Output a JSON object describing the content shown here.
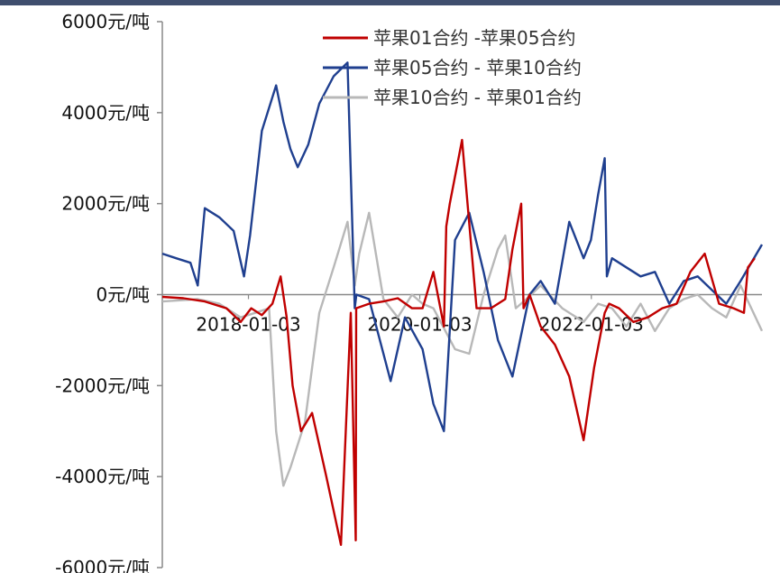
{
  "chart_data": {
    "type": "line",
    "y_unit": "元/吨",
    "ylim": [
      -6000,
      6000
    ],
    "y_ticks": [
      {
        "value": 6000,
        "label": "6000元/吨"
      },
      {
        "value": 4000,
        "label": "4000元/吨"
      },
      {
        "value": 2000,
        "label": "2000元/吨"
      },
      {
        "value": 0,
        "label": "0元/吨"
      },
      {
        "value": -2000,
        "label": "-2000元/吨"
      },
      {
        "value": -4000,
        "label": "-4000元/吨"
      },
      {
        "value": -6000,
        "label": "-6000元/吨"
      }
    ],
    "xlim": [
      "2017-01-01",
      "2023-12-31"
    ],
    "x_ticks": [
      "2018-01-03",
      "2020-01-03",
      "2022-01-03"
    ],
    "legend_position": "top-right",
    "grid": false,
    "series": [
      {
        "name": "苹果01合约 -苹果05合约",
        "color": "#c00000",
        "x": [
          "2017-01-01",
          "2017-04-01",
          "2017-07-01",
          "2017-10-01",
          "2017-12-01",
          "2018-01-15",
          "2018-03-01",
          "2018-04-15",
          "2018-05-20",
          "2018-06-15",
          "2018-07-10",
          "2018-08-15",
          "2018-10-01",
          "2018-12-01",
          "2019-02-01",
          "2019-03-15",
          "2019-04-05",
          "2019-04-07",
          "2019-06-01",
          "2019-08-01",
          "2019-10-01",
          "2019-12-01",
          "2020-01-15",
          "2020-03-01",
          "2020-04-15",
          "2020-04-25",
          "2020-05-10",
          "2020-07-01",
          "2020-09-01",
          "2020-11-01",
          "2021-01-01",
          "2021-02-01",
          "2021-03-10",
          "2021-03-20",
          "2021-04-15",
          "2021-06-01",
          "2021-08-01",
          "2021-10-01",
          "2021-12-01",
          "2022-01-15",
          "2022-03-01",
          "2022-03-10",
          "2022-03-20",
          "2022-05-01",
          "2022-07-01",
          "2022-09-01",
          "2022-11-01",
          "2023-01-01",
          "2023-03-01",
          "2023-05-01",
          "2023-07-01",
          "2023-09-01",
          "2023-10-15",
          "2023-11-01",
          "2023-11-30"
        ],
        "y": [
          -50,
          -80,
          -150,
          -300,
          -600,
          -300,
          -450,
          -200,
          400,
          -500,
          -2000,
          -3000,
          -2600,
          -4000,
          -5500,
          -400,
          -5400,
          -300,
          -200,
          -150,
          -80,
          -300,
          -300,
          500,
          -700,
          1500,
          2000,
          3400,
          -300,
          -300,
          -100,
          1000,
          2000,
          -300,
          0,
          -700,
          -1100,
          -1800,
          -3200,
          -1600,
          -400,
          -300,
          -200,
          -300,
          -600,
          -500,
          -300,
          -200,
          500,
          900,
          -200,
          -300,
          -400,
          600,
          800
        ]
      },
      {
        "name": "苹果05合约 - 苹果10合约",
        "color": "#1f3f8f",
        "x": [
          "2017-01-01",
          "2017-03-01",
          "2017-05-01",
          "2017-06-01",
          "2017-07-01",
          "2017-09-01",
          "2017-11-01",
          "2017-12-15",
          "2018-01-10",
          "2018-03-01",
          "2018-05-01",
          "2018-06-01",
          "2018-07-01",
          "2018-08-01",
          "2018-09-15",
          "2018-11-01",
          "2019-01-01",
          "2019-03-01",
          "2019-04-01",
          "2019-04-08",
          "2019-06-01",
          "2019-09-01",
          "2019-11-01",
          "2020-01-15",
          "2020-03-01",
          "2020-04-15",
          "2020-06-01",
          "2020-08-01",
          "2020-10-01",
          "2020-12-01",
          "2021-02-01",
          "2021-04-15",
          "2021-06-01",
          "2021-08-01",
          "2021-10-01",
          "2021-12-01",
          "2022-01-01",
          "2022-02-01",
          "2022-03-01",
          "2022-03-10",
          "2022-04-01",
          "2022-06-01",
          "2022-08-01",
          "2022-10-01",
          "2022-12-01",
          "2023-02-01",
          "2023-04-01",
          "2023-06-01",
          "2023-08-01",
          "2023-10-01",
          "2023-12-31"
        ],
        "y": [
          900,
          800,
          700,
          200,
          1900,
          1700,
          1400,
          400,
          1300,
          3600,
          4600,
          3800,
          3200,
          2800,
          3300,
          4200,
          4800,
          5100,
          -300,
          0,
          -100,
          -1900,
          -500,
          -1200,
          -2400,
          -3000,
          1200,
          1800,
          500,
          -1000,
          -1800,
          0,
          300,
          -200,
          1600,
          800,
          1200,
          2200,
          3000,
          400,
          800,
          600,
          400,
          500,
          -200,
          300,
          400,
          100,
          -200,
          300,
          1100
        ]
      },
      {
        "name": "苹果10合约 - 苹果01合约",
        "color": "#b8b8b8",
        "x": [
          "2017-01-01",
          "2017-06-01",
          "2017-09-01",
          "2017-12-01",
          "2018-02-01",
          "2018-04-01",
          "2018-05-01",
          "2018-06-01",
          "2018-07-01",
          "2018-09-01",
          "2018-11-01",
          "2019-01-01",
          "2019-03-01",
          "2019-04-01",
          "2019-04-20",
          "2019-06-01",
          "2019-08-01",
          "2019-10-01",
          "2019-12-01",
          "2020-01-15",
          "2020-03-01",
          "2020-06-01",
          "2020-08-01",
          "2020-10-01",
          "2020-12-01",
          "2021-01-01",
          "2021-02-15",
          "2021-04-01",
          "2021-06-01",
          "2021-09-01",
          "2021-12-01",
          "2022-02-01",
          "2022-04-01",
          "2022-06-01",
          "2022-08-01",
          "2022-10-01",
          "2022-12-01",
          "2023-02-01",
          "2023-04-01",
          "2023-06-01",
          "2023-08-01",
          "2023-10-01",
          "2023-12-31"
        ],
        "y": [
          -150,
          -100,
          -200,
          -500,
          -400,
          -300,
          -3000,
          -4200,
          -3800,
          -2800,
          -400,
          600,
          1600,
          200,
          900,
          1800,
          -100,
          -500,
          0,
          -200,
          -300,
          -1200,
          -1300,
          0,
          1000,
          1300,
          -300,
          -100,
          200,
          -300,
          -600,
          -200,
          -300,
          -700,
          -200,
          -800,
          -300,
          -100,
          0,
          -300,
          -500,
          200,
          -800
        ]
      }
    ]
  }
}
